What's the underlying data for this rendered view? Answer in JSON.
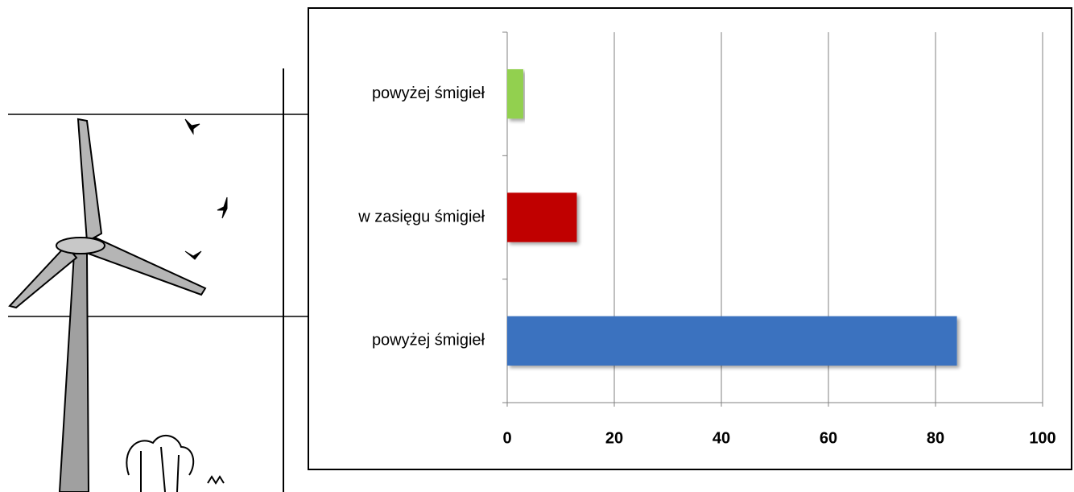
{
  "chart_data": {
    "type": "bar",
    "orientation": "horizontal",
    "categories": [
      "powyżej śmigieł",
      "w zasięgu śmigieł",
      "powyżej śmigieł"
    ],
    "values": [
      3,
      13,
      84
    ],
    "colors": [
      "#92d050",
      "#c00000",
      "#3a72bf"
    ],
    "xlim": [
      0,
      100
    ],
    "xticks": [
      0,
      20,
      40,
      60,
      80,
      100
    ],
    "grid": true
  }
}
